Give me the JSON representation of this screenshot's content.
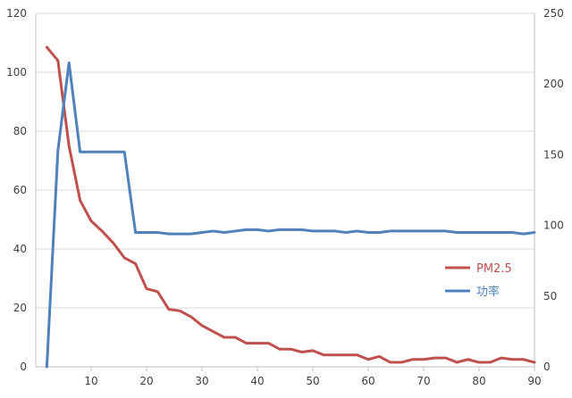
{
  "chart_data": {
    "type": "line",
    "title": "",
    "xlabel": "",
    "ylabel": "",
    "y2label": "",
    "xlim": [
      0,
      90
    ],
    "ylim": [
      0,
      120
    ],
    "y2lim": [
      0,
      250
    ],
    "x_ticks": [
      10,
      20,
      30,
      40,
      50,
      60,
      70,
      80,
      90
    ],
    "y_ticks": [
      0,
      20,
      40,
      60,
      80,
      100,
      120
    ],
    "y2_ticks": [
      0,
      50,
      100,
      150,
      200,
      250
    ],
    "grid": "horizontal",
    "legend_position": "right",
    "x": [
      2,
      4,
      6,
      8,
      10,
      12,
      14,
      16,
      18,
      20,
      22,
      24,
      26,
      28,
      30,
      32,
      34,
      36,
      38,
      40,
      42,
      44,
      46,
      48,
      50,
      52,
      54,
      56,
      58,
      60,
      62,
      64,
      66,
      68,
      70,
      72,
      74,
      76,
      78,
      80,
      82,
      84,
      86,
      88,
      90
    ],
    "series": [
      {
        "name": "PM2.5",
        "axis": "left",
        "color": "#c0504d",
        "values": [
          108.5,
          104,
          75,
          56.5,
          49.5,
          46,
          42,
          37,
          35,
          26.5,
          25.5,
          19.5,
          19,
          17,
          14,
          12,
          10,
          10,
          8,
          8,
          8,
          6,
          6,
          5,
          5.5,
          4,
          4,
          4,
          4,
          2.5,
          3.5,
          1.5,
          1.5,
          2.5,
          2.5,
          3,
          3,
          1.5,
          2.5,
          1.5,
          1.5,
          3,
          2.5,
          2.5,
          1.5
        ]
      },
      {
        "name": "功率",
        "axis": "right",
        "color": "#4f81bd",
        "values": [
          0,
          153,
          215,
          152,
          152,
          152,
          152,
          152,
          95,
          95,
          95,
          94,
          94,
          94,
          95,
          96,
          95,
          96,
          97,
          97,
          96,
          97,
          97,
          97,
          96,
          96,
          96,
          95,
          96,
          95,
          95,
          96,
          96,
          96,
          96,
          96,
          96,
          95,
          95,
          95,
          95,
          95,
          95,
          94,
          95
        ]
      }
    ]
  }
}
